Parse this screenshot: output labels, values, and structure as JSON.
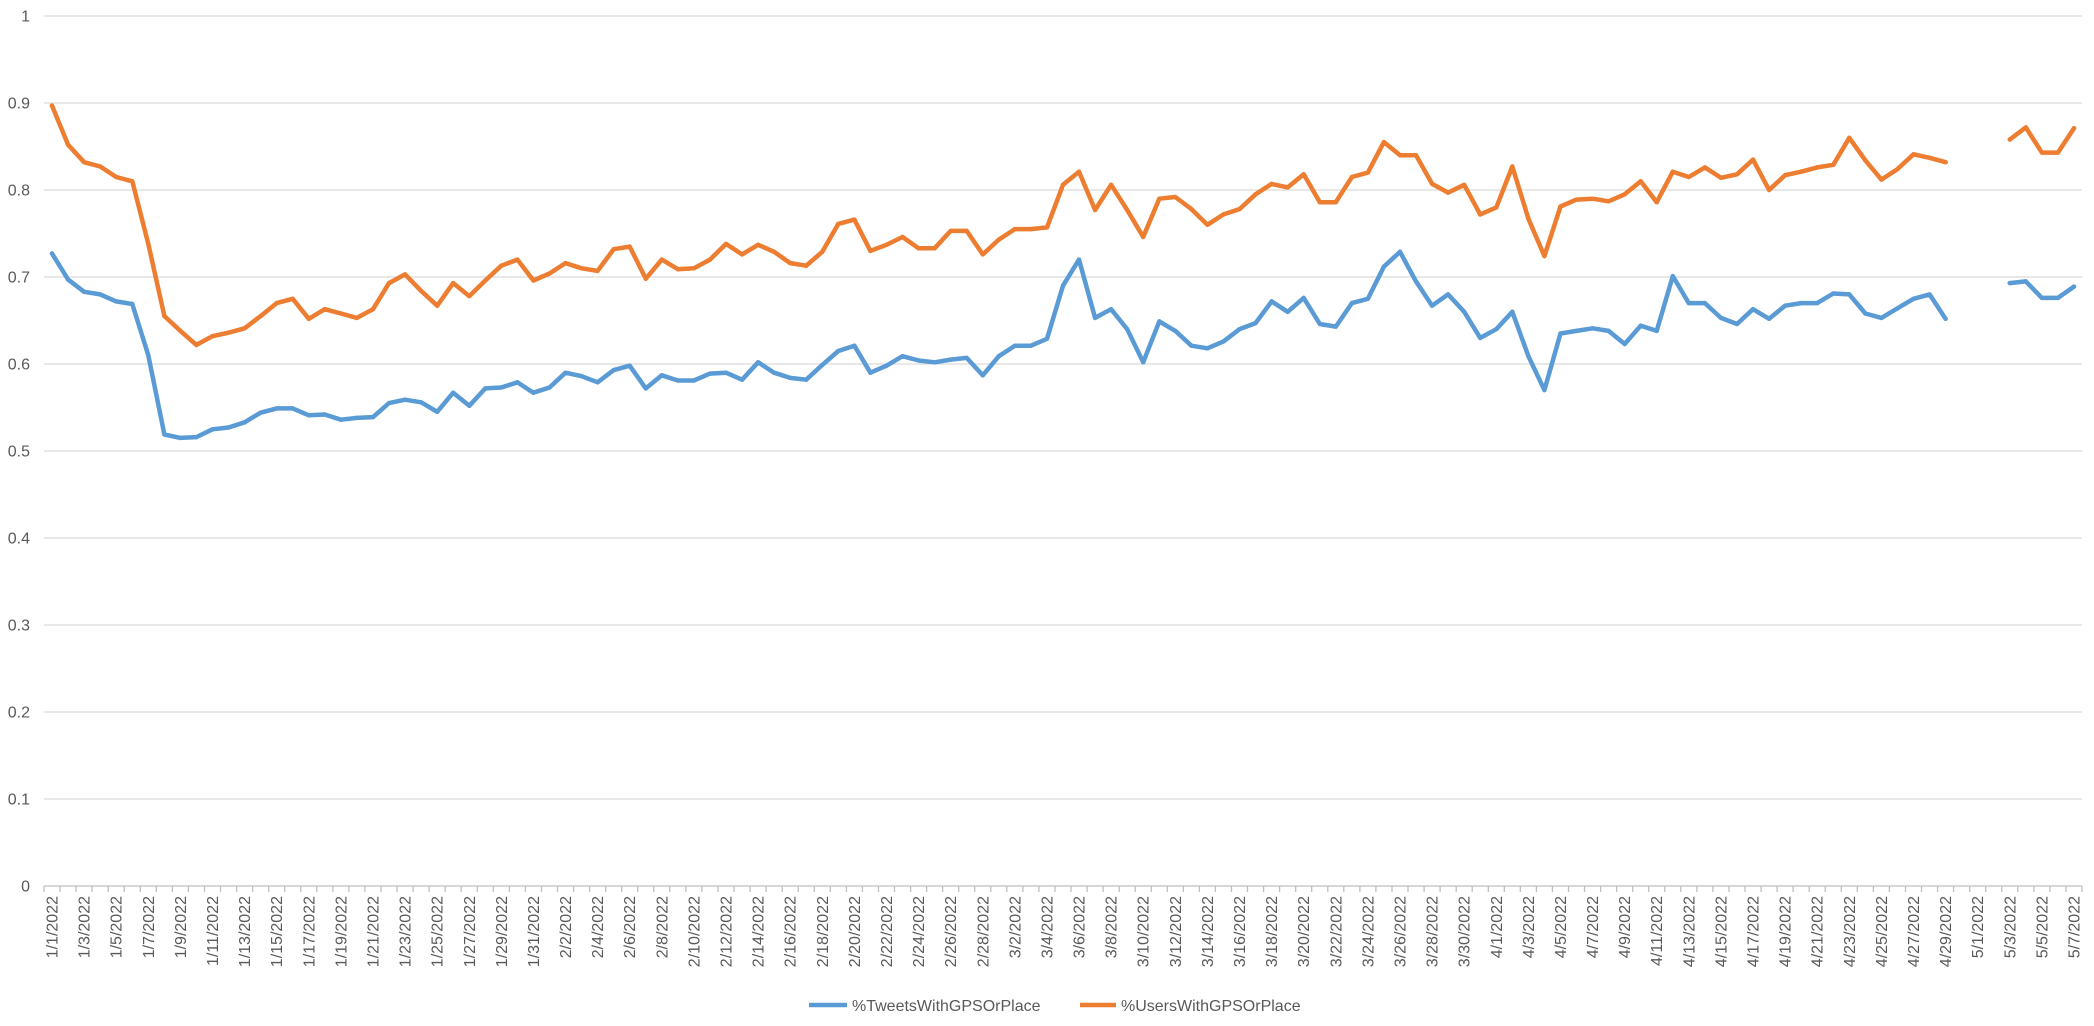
{
  "chart_data": {
    "type": "line",
    "categories": [
      "1/1/2022",
      "1/2/2022",
      "1/3/2022",
      "1/4/2022",
      "1/5/2022",
      "1/6/2022",
      "1/7/2022",
      "1/8/2022",
      "1/9/2022",
      "1/10/2022",
      "1/11/2022",
      "1/12/2022",
      "1/13/2022",
      "1/14/2022",
      "1/15/2022",
      "1/16/2022",
      "1/17/2022",
      "1/18/2022",
      "1/19/2022",
      "1/20/2022",
      "1/21/2022",
      "1/22/2022",
      "1/23/2022",
      "1/24/2022",
      "1/25/2022",
      "1/26/2022",
      "1/27/2022",
      "1/28/2022",
      "1/29/2022",
      "1/30/2022",
      "1/31/2022",
      "2/1/2022",
      "2/2/2022",
      "2/3/2022",
      "2/4/2022",
      "2/5/2022",
      "2/6/2022",
      "2/7/2022",
      "2/8/2022",
      "2/9/2022",
      "2/10/2022",
      "2/11/2022",
      "2/12/2022",
      "2/13/2022",
      "2/14/2022",
      "2/15/2022",
      "2/16/2022",
      "2/17/2022",
      "2/18/2022",
      "2/19/2022",
      "2/20/2022",
      "2/21/2022",
      "2/22/2022",
      "2/23/2022",
      "2/24/2022",
      "2/25/2022",
      "2/26/2022",
      "2/27/2022",
      "2/28/2022",
      "3/1/2022",
      "3/2/2022",
      "3/3/2022",
      "3/4/2022",
      "3/5/2022",
      "3/6/2022",
      "3/7/2022",
      "3/8/2022",
      "3/9/2022",
      "3/10/2022",
      "3/11/2022",
      "3/12/2022",
      "3/13/2022",
      "3/14/2022",
      "3/15/2022",
      "3/16/2022",
      "3/17/2022",
      "3/18/2022",
      "3/19/2022",
      "3/20/2022",
      "3/21/2022",
      "3/22/2022",
      "3/23/2022",
      "3/24/2022",
      "3/25/2022",
      "3/26/2022",
      "3/27/2022",
      "3/28/2022",
      "3/29/2022",
      "3/30/2022",
      "3/31/2022",
      "4/1/2022",
      "4/2/2022",
      "4/3/2022",
      "4/4/2022",
      "4/5/2022",
      "4/6/2022",
      "4/7/2022",
      "4/8/2022",
      "4/9/2022",
      "4/10/2022",
      "4/11/2022",
      "4/12/2022",
      "4/13/2022",
      "4/14/2022",
      "4/15/2022",
      "4/16/2022",
      "4/17/2022",
      "4/18/2022",
      "4/19/2022",
      "4/20/2022",
      "4/21/2022",
      "4/22/2022",
      "4/23/2022",
      "4/24/2022",
      "4/25/2022",
      "4/26/2022",
      "4/27/2022",
      "4/28/2022",
      "4/29/2022",
      "4/30/2022",
      "5/1/2022",
      "5/2/2022",
      "5/3/2022",
      "5/4/2022",
      "5/5/2022",
      "5/6/2022",
      "5/7/2022"
    ],
    "series": [
      {
        "name": "%TweetsWithGPSOrPlace",
        "color": "#5B9BD5",
        "values": [
          0.727,
          0.697,
          0.683,
          0.68,
          0.672,
          0.669,
          0.61,
          0.519,
          0.515,
          0.516,
          0.525,
          0.527,
          0.533,
          0.544,
          0.549,
          0.549,
          0.541,
          0.542,
          0.536,
          0.538,
          0.539,
          0.555,
          0.559,
          0.556,
          0.545,
          0.567,
          0.552,
          0.572,
          0.573,
          0.579,
          0.567,
          0.573,
          0.59,
          0.586,
          0.579,
          0.593,
          0.598,
          0.572,
          0.587,
          0.581,
          0.581,
          0.589,
          0.59,
          0.582,
          0.602,
          0.59,
          0.584,
          0.582,
          0.599,
          0.615,
          0.621,
          0.59,
          0.598,
          0.609,
          0.604,
          0.602,
          0.605,
          0.607,
          0.587,
          0.609,
          0.621,
          0.621,
          0.629,
          0.69,
          0.72,
          0.653,
          0.663,
          0.64,
          0.602,
          0.649,
          0.638,
          0.621,
          0.618,
          0.626,
          0.64,
          0.647,
          0.672,
          0.66,
          0.676,
          0.646,
          0.643,
          0.67,
          0.675,
          0.712,
          0.729,
          0.695,
          0.667,
          0.68,
          0.66,
          0.63,
          0.64,
          0.66,
          0.609,
          0.57,
          0.635,
          0.638,
          0.641,
          0.638,
          0.623,
          0.644,
          0.638,
          0.701,
          0.67,
          0.67,
          0.653,
          0.646,
          0.663,
          0.652,
          0.667,
          0.67,
          0.67,
          0.681,
          0.68,
          0.658,
          0.653,
          0.664,
          0.675,
          0.68,
          0.652,
          null,
          null,
          null,
          0.693,
          0.695,
          0.676,
          0.676,
          0.689
        ]
      },
      {
        "name": "%UsersWithGPSOrPlace",
        "color": "#ED7D31",
        "values": [
          0.897,
          0.852,
          0.832,
          0.827,
          0.815,
          0.81,
          0.738,
          0.655,
          0.638,
          0.622,
          0.632,
          0.636,
          0.641,
          0.655,
          0.67,
          0.675,
          0.652,
          0.663,
          0.658,
          0.653,
          0.663,
          0.693,
          0.703,
          0.684,
          0.667,
          0.693,
          0.678,
          0.696,
          0.713,
          0.72,
          0.696,
          0.704,
          0.716,
          0.71,
          0.707,
          0.732,
          0.735,
          0.698,
          0.72,
          0.709,
          0.71,
          0.72,
          0.738,
          0.726,
          0.737,
          0.729,
          0.716,
          0.713,
          0.729,
          0.761,
          0.766,
          0.73,
          0.737,
          0.746,
          0.733,
          0.733,
          0.753,
          0.753,
          0.726,
          0.743,
          0.755,
          0.755,
          0.757,
          0.806,
          0.821,
          0.777,
          0.806,
          0.777,
          0.746,
          0.79,
          0.792,
          0.778,
          0.76,
          0.772,
          0.778,
          0.795,
          0.807,
          0.803,
          0.818,
          0.786,
          0.786,
          0.815,
          0.82,
          0.855,
          0.84,
          0.84,
          0.807,
          0.797,
          0.806,
          0.772,
          0.78,
          0.827,
          0.767,
          0.724,
          0.781,
          0.789,
          0.79,
          0.787,
          0.795,
          0.81,
          0.786,
          0.821,
          0.815,
          0.826,
          0.814,
          0.818,
          0.835,
          0.8,
          0.817,
          0.821,
          0.826,
          0.829,
          0.86,
          0.834,
          0.812,
          0.824,
          0.841,
          0.837,
          0.832,
          null,
          null,
          null,
          0.858,
          0.872,
          0.843,
          0.843,
          0.871
        ]
      }
    ],
    "ylim": [
      0,
      1
    ],
    "y_tick_labels": [
      "0",
      "0.1",
      "0.2",
      "0.3",
      "0.4",
      "0.5",
      "0.6",
      "0.7",
      "0.8",
      "0.9",
      "1"
    ],
    "x_label_interval": 2,
    "gridlines": "horizontal",
    "legend": "bottom"
  }
}
